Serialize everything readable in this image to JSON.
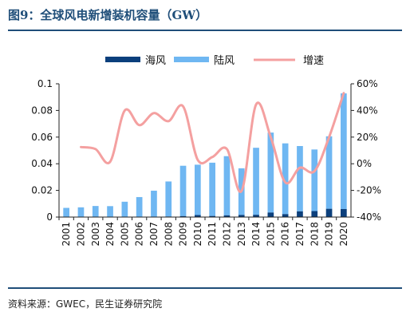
{
  "page": {
    "title": "图9：全球风电新增装机容量（GW）",
    "source": "资料来源：GWEC，民生证券研究院"
  },
  "colors": {
    "title": "#1F4E79",
    "offshore": "#0B3F7C",
    "onshore": "#6FB7F2",
    "growth": "#F4A0A0"
  },
  "chart_data": {
    "type": "bar",
    "stacked": true,
    "categories": [
      "2001",
      "2002",
      "2003",
      "2004",
      "2005",
      "2006",
      "2007",
      "2008",
      "2009",
      "2010",
      "2011",
      "2012",
      "2013",
      "2014",
      "2015",
      "2016",
      "2017",
      "2018",
      "2019",
      "2020"
    ],
    "series": [
      {
        "name": "海风",
        "axis": "left",
        "kind": "bar",
        "values": [
          0.0001,
          0.0002,
          0.0003,
          0.0001,
          0.0001,
          0.0001,
          0.0003,
          0.0004,
          0.0007,
          0.0015,
          0.0008,
          0.0013,
          0.0016,
          0.0017,
          0.0034,
          0.0022,
          0.0043,
          0.0045,
          0.0062,
          0.006
        ]
      },
      {
        "name": "陆风",
        "axis": "left",
        "kind": "bar",
        "values": [
          0.0068,
          0.0071,
          0.008,
          0.0081,
          0.0114,
          0.0149,
          0.0195,
          0.0263,
          0.0378,
          0.0378,
          0.04,
          0.0444,
          0.035,
          0.0503,
          0.06,
          0.0531,
          0.049,
          0.0462,
          0.0544,
          0.0868
        ]
      },
      {
        "name": "增速",
        "axis": "right",
        "kind": "line",
        "values": [
          null,
          12.5,
          11.0,
          1.5,
          40.0,
          29.0,
          38.0,
          32.0,
          43.0,
          3.0,
          5.0,
          11.0,
          -20.5,
          44.5,
          20.0,
          -14.0,
          -3.0,
          -5.5,
          20.0,
          53.0
        ]
      }
    ],
    "y_left": {
      "min": 0,
      "max": 0.1,
      "ticks": [
        0,
        0.02,
        0.04,
        0.06,
        0.08,
        0.1
      ],
      "tick_labels": [
        "0",
        "0.02",
        "0.04",
        "0.06",
        "0.08",
        "0.1"
      ]
    },
    "y_right": {
      "min": -40,
      "max": 60,
      "ticks": [
        -40,
        -20,
        0,
        20,
        40,
        60
      ],
      "tick_labels": [
        "-40%",
        "-20%",
        "0%",
        "20%",
        "40%",
        "60%"
      ]
    },
    "legend_position": "top",
    "grid": false
  }
}
